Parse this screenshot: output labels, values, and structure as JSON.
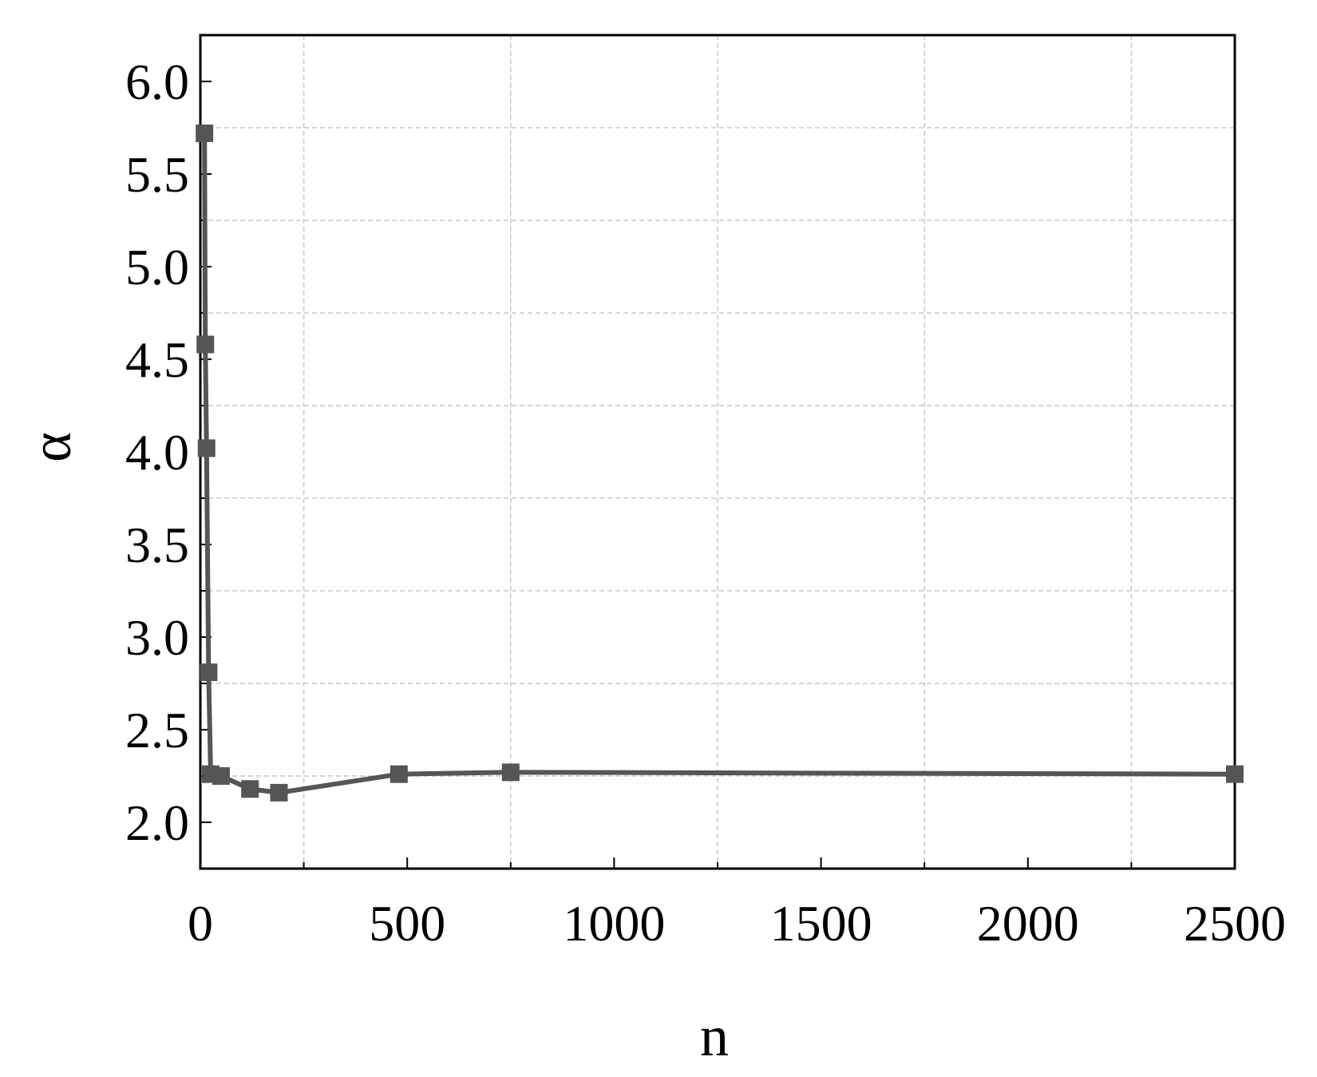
{
  "chart_data": {
    "type": "line",
    "x_label": "n",
    "y_label": "α",
    "x": [
      10,
      12,
      15,
      20,
      25,
      50,
      120,
      190,
      480,
      750,
      2500
    ],
    "series": [
      {
        "color": "#555555",
        "values": [
          5.72,
          4.58,
          4.02,
          2.81,
          2.26,
          2.25,
          2.18,
          2.16,
          2.26,
          2.27,
          2.26
        ]
      }
    ],
    "xlim": [
      0,
      2500
    ],
    "ylim": [
      1.75,
      6.25
    ],
    "xticks": [
      0,
      500,
      1000,
      1500,
      2000,
      2500
    ],
    "yticks": [
      {
        "value": 2,
        "label": "2.0"
      },
      2.5,
      {
        "value": 3,
        "label": "3.0"
      },
      3.5,
      {
        "value": 4,
        "label": "4.0"
      },
      4.5,
      {
        "value": 5,
        "label": "5.0"
      },
      5.5,
      {
        "value": 6,
        "label": "6.0"
      }
    ],
    "xminor": [
      250,
      750,
      1250,
      1750,
      2250
    ],
    "yminor": [
      2.25,
      2.75,
      3.25,
      3.75,
      4.25,
      4.75,
      5.25,
      5.75
    ],
    "grid": true
  }
}
